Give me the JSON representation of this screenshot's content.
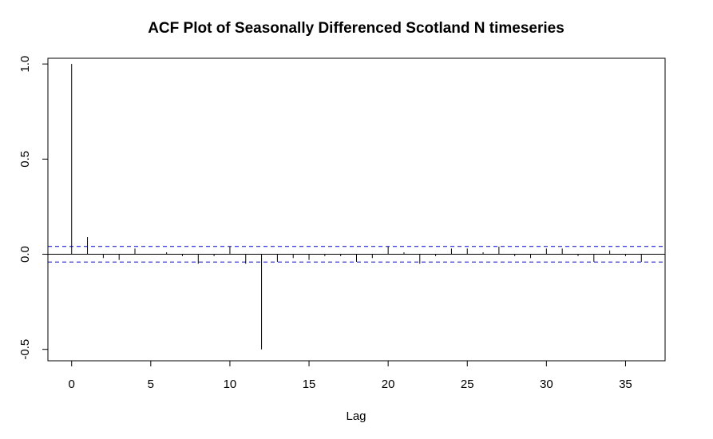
{
  "chart_data": {
    "type": "bar",
    "title": "ACF Plot of Seasonally Differenced Scotland N timeseries",
    "xlabel": "Lag",
    "ylabel": "",
    "xlim": [
      -1.5,
      37.5
    ],
    "ylim": [
      -0.56,
      1.03
    ],
    "x_ticks": [
      0,
      5,
      10,
      15,
      20,
      25,
      30,
      35
    ],
    "y_ticks": [
      -0.5,
      0.0,
      0.5,
      1.0
    ],
    "y_tick_labels": [
      "-0.5",
      "0.0",
      "0.5",
      "1.0"
    ],
    "lags": [
      0,
      1,
      2,
      3,
      4,
      5,
      6,
      7,
      8,
      9,
      10,
      11,
      12,
      13,
      14,
      15,
      16,
      17,
      18,
      19,
      20,
      21,
      22,
      23,
      24,
      25,
      26,
      27,
      28,
      29,
      30,
      31,
      32,
      33,
      34,
      35,
      36
    ],
    "acf": [
      1.0,
      0.09,
      -0.02,
      -0.03,
      0.03,
      0.0,
      0.01,
      -0.01,
      -0.05,
      -0.01,
      0.04,
      -0.05,
      -0.5,
      -0.04,
      -0.02,
      -0.03,
      -0.01,
      -0.01,
      -0.04,
      -0.02,
      0.04,
      0.01,
      -0.05,
      -0.01,
      0.03,
      0.03,
      0.01,
      0.04,
      -0.01,
      -0.02,
      0.03,
      0.03,
      -0.01,
      -0.04,
      0.02,
      -0.01,
      -0.04
    ],
    "confidence_bound": 0.041,
    "grid": false,
    "colors": {
      "bars": "#000000",
      "zero_line": "#000000",
      "bounds": "#0000cc",
      "frame": "#000000"
    }
  }
}
